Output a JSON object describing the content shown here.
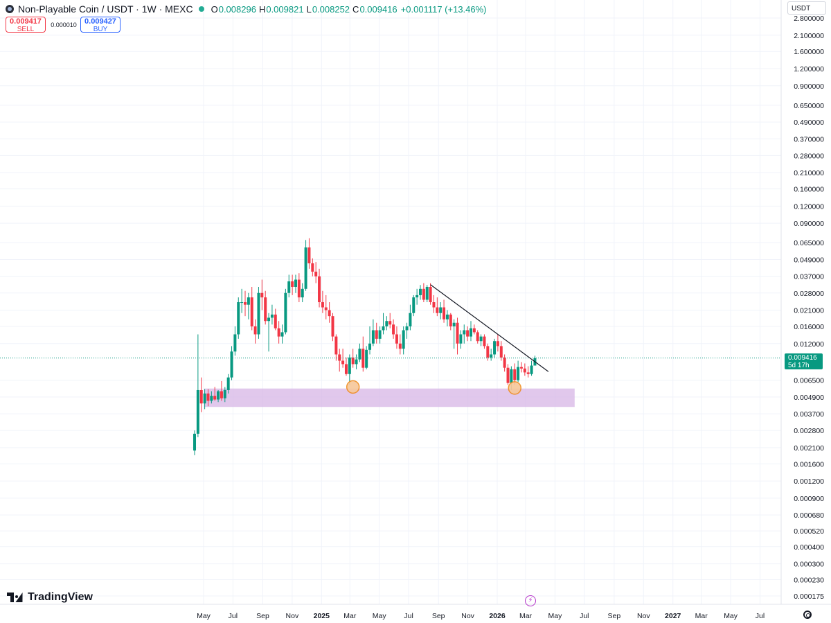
{
  "header": {
    "title": "Non-Playable Coin / USDT · 1W · MEXC",
    "ohlc": [
      {
        "k": "O",
        "v": "0.008296"
      },
      {
        "k": "H",
        "v": "0.009821"
      },
      {
        "k": "L",
        "v": "0.008252"
      },
      {
        "k": "C",
        "v": "0.009416"
      }
    ],
    "change": "+0.001117 (+13.46%)"
  },
  "trade": {
    "sell_price": "0.009417",
    "sell_label": "SELL",
    "spread": "0.000010",
    "buy_price": "0.009427",
    "buy_label": "BUY"
  },
  "currency_selector": "USDT",
  "price_tag": {
    "value": "0.009416",
    "countdown": "5d 17h"
  },
  "brand": "TradingView",
  "colors": {
    "up": "#089981",
    "down": "#f23645",
    "zone": "#d7b6e6",
    "grid": "#f0f3fa",
    "marker_fill": "#f7c79a",
    "marker_stroke": "#f08c1d",
    "trendline": "#131722"
  },
  "chart_data": {
    "type": "candlestick",
    "scale": "log",
    "y_ticks": [
      "2.800000",
      "2.100000",
      "1.600000",
      "1.200000",
      "0.900000",
      "0.650000",
      "0.490000",
      "0.370000",
      "0.280000",
      "0.210000",
      "0.160000",
      "0.120000",
      "0.090000",
      "0.065000",
      "0.049000",
      "0.037000",
      "0.028000",
      "0.021000",
      "0.016000",
      "0.012000",
      "0.006500",
      "0.004900",
      "0.003700",
      "0.002800",
      "0.002100",
      "0.001600",
      "0.001200",
      "0.000900",
      "0.000680",
      "0.000520",
      "0.000400",
      "0.000300",
      "0.000230",
      "0.000175"
    ],
    "x_ticks": [
      {
        "label": "May",
        "date": "2024-05-01"
      },
      {
        "label": "Jul",
        "date": "2024-07-01"
      },
      {
        "label": "Sep",
        "date": "2024-09-01"
      },
      {
        "label": "Nov",
        "date": "2024-11-01"
      },
      {
        "label": "2025",
        "date": "2025-01-01",
        "bold": true
      },
      {
        "label": "Mar",
        "date": "2025-03-01"
      },
      {
        "label": "May",
        "date": "2025-05-01"
      },
      {
        "label": "Jul",
        "date": "2025-07-01"
      },
      {
        "label": "Sep",
        "date": "2025-09-01"
      },
      {
        "label": "Nov",
        "date": "2025-11-01"
      },
      {
        "label": "2026",
        "date": "2026-01-01",
        "bold": true
      },
      {
        "label": "Mar",
        "date": "2026-03-01"
      },
      {
        "label": "May",
        "date": "2026-05-01"
      },
      {
        "label": "Jul",
        "date": "2026-07-01"
      },
      {
        "label": "Sep",
        "date": "2026-09-01"
      },
      {
        "label": "Nov",
        "date": "2026-11-01"
      },
      {
        "label": "2027",
        "date": "2027-01-01",
        "bold": true
      },
      {
        "label": "Mar",
        "date": "2027-03-01"
      },
      {
        "label": "May",
        "date": "2027-05-01"
      },
      {
        "label": "Jul",
        "date": "2027-07-01"
      }
    ],
    "last_price": 0.009416,
    "support_zone": {
      "low": 0.00415,
      "high": 0.00565,
      "start": "2024-04-15",
      "end": "2026-06-08"
    },
    "trendline": {
      "start": {
        "date": "2025-08-11",
        "price": 0.0322
      },
      "end": {
        "date": "2026-04-13",
        "price": 0.0075
      }
    },
    "markers": [
      {
        "date": "2025-03-03",
        "price": 0.0058
      },
      {
        "date": "2026-02-02",
        "price": 0.0057
      }
    ],
    "candles": [
      {
        "d": "2024-04-08",
        "o": 0.002,
        "h": 0.0028,
        "l": 0.00185,
        "c": 0.00265
      },
      {
        "d": "2024-04-15",
        "o": 0.00265,
        "h": 0.014,
        "l": 0.0025,
        "c": 0.0055
      },
      {
        "d": "2024-04-22",
        "o": 0.0055,
        "h": 0.0068,
        "l": 0.0038,
        "c": 0.0044
      },
      {
        "d": "2024-04-29",
        "o": 0.0044,
        "h": 0.0056,
        "l": 0.004,
        "c": 0.0052
      },
      {
        "d": "2024-05-06",
        "o": 0.0052,
        "h": 0.0056,
        "l": 0.0042,
        "c": 0.0046
      },
      {
        "d": "2024-05-13",
        "o": 0.0046,
        "h": 0.0054,
        "l": 0.0044,
        "c": 0.005
      },
      {
        "d": "2024-05-20",
        "o": 0.005,
        "h": 0.0058,
        "l": 0.0046,
        "c": 0.0047
      },
      {
        "d": "2024-05-27",
        "o": 0.0047,
        "h": 0.0055,
        "l": 0.0045,
        "c": 0.0054
      },
      {
        "d": "2024-06-03",
        "o": 0.0054,
        "h": 0.0064,
        "l": 0.0046,
        "c": 0.0048
      },
      {
        "d": "2024-06-10",
        "o": 0.0048,
        "h": 0.0058,
        "l": 0.0045,
        "c": 0.0055
      },
      {
        "d": "2024-06-17",
        "o": 0.0055,
        "h": 0.0072,
        "l": 0.0052,
        "c": 0.0068
      },
      {
        "d": "2024-06-24",
        "o": 0.0068,
        "h": 0.0115,
        "l": 0.0065,
        "c": 0.0105
      },
      {
        "d": "2024-07-01",
        "o": 0.0105,
        "h": 0.016,
        "l": 0.0098,
        "c": 0.014
      },
      {
        "d": "2024-07-08",
        "o": 0.014,
        "h": 0.026,
        "l": 0.013,
        "c": 0.024
      },
      {
        "d": "2024-07-15",
        "o": 0.024,
        "h": 0.03,
        "l": 0.02,
        "c": 0.024
      },
      {
        "d": "2024-07-22",
        "o": 0.024,
        "h": 0.029,
        "l": 0.019,
        "c": 0.023
      },
      {
        "d": "2024-07-29",
        "o": 0.023,
        "h": 0.028,
        "l": 0.018,
        "c": 0.026
      },
      {
        "d": "2024-08-05",
        "o": 0.026,
        "h": 0.031,
        "l": 0.015,
        "c": 0.016
      },
      {
        "d": "2024-08-12",
        "o": 0.016,
        "h": 0.018,
        "l": 0.012,
        "c": 0.014
      },
      {
        "d": "2024-08-19",
        "o": 0.014,
        "h": 0.031,
        "l": 0.013,
        "c": 0.028
      },
      {
        "d": "2024-08-26",
        "o": 0.028,
        "h": 0.035,
        "l": 0.021,
        "c": 0.026
      },
      {
        "d": "2024-09-02",
        "o": 0.026,
        "h": 0.029,
        "l": 0.0165,
        "c": 0.0175
      },
      {
        "d": "2024-09-09",
        "o": 0.0175,
        "h": 0.02,
        "l": 0.0105,
        "c": 0.0185
      },
      {
        "d": "2024-09-16",
        "o": 0.0185,
        "h": 0.023,
        "l": 0.0165,
        "c": 0.0195
      },
      {
        "d": "2024-09-23",
        "o": 0.0195,
        "h": 0.0215,
        "l": 0.015,
        "c": 0.0155
      },
      {
        "d": "2024-09-30",
        "o": 0.0155,
        "h": 0.0175,
        "l": 0.012,
        "c": 0.0135
      },
      {
        "d": "2024-10-07",
        "o": 0.0135,
        "h": 0.0165,
        "l": 0.012,
        "c": 0.0145
      },
      {
        "d": "2024-10-14",
        "o": 0.0145,
        "h": 0.03,
        "l": 0.014,
        "c": 0.028
      },
      {
        "d": "2024-10-21",
        "o": 0.028,
        "h": 0.038,
        "l": 0.026,
        "c": 0.034
      },
      {
        "d": "2024-10-28",
        "o": 0.034,
        "h": 0.038,
        "l": 0.027,
        "c": 0.031
      },
      {
        "d": "2024-11-04",
        "o": 0.031,
        "h": 0.038,
        "l": 0.028,
        "c": 0.035
      },
      {
        "d": "2024-11-11",
        "o": 0.035,
        "h": 0.039,
        "l": 0.024,
        "c": 0.026
      },
      {
        "d": "2024-11-18",
        "o": 0.026,
        "h": 0.033,
        "l": 0.024,
        "c": 0.03
      },
      {
        "d": "2024-11-25",
        "o": 0.03,
        "h": 0.068,
        "l": 0.029,
        "c": 0.06
      },
      {
        "d": "2024-12-02",
        "o": 0.06,
        "h": 0.07,
        "l": 0.042,
        "c": 0.046
      },
      {
        "d": "2024-12-09",
        "o": 0.046,
        "h": 0.05,
        "l": 0.037,
        "c": 0.04
      },
      {
        "d": "2024-12-16",
        "o": 0.04,
        "h": 0.047,
        "l": 0.033,
        "c": 0.037
      },
      {
        "d": "2024-12-23",
        "o": 0.037,
        "h": 0.042,
        "l": 0.022,
        "c": 0.024
      },
      {
        "d": "2024-12-30",
        "o": 0.024,
        "h": 0.029,
        "l": 0.02,
        "c": 0.022
      },
      {
        "d": "2025-01-06",
        "o": 0.022,
        "h": 0.027,
        "l": 0.018,
        "c": 0.021
      },
      {
        "d": "2025-01-13",
        "o": 0.021,
        "h": 0.024,
        "l": 0.017,
        "c": 0.019
      },
      {
        "d": "2025-01-20",
        "o": 0.019,
        "h": 0.02,
        "l": 0.0125,
        "c": 0.0135
      },
      {
        "d": "2025-01-27",
        "o": 0.0135,
        "h": 0.014,
        "l": 0.009,
        "c": 0.01
      },
      {
        "d": "2025-02-03",
        "o": 0.01,
        "h": 0.011,
        "l": 0.0075,
        "c": 0.009
      },
      {
        "d": "2025-02-10",
        "o": 0.009,
        "h": 0.011,
        "l": 0.008,
        "c": 0.0085
      },
      {
        "d": "2025-02-17",
        "o": 0.0085,
        "h": 0.0095,
        "l": 0.007,
        "c": 0.0072
      },
      {
        "d": "2025-02-24",
        "o": 0.0072,
        "h": 0.01,
        "l": 0.006,
        "c": 0.0095
      },
      {
        "d": "2025-03-03",
        "o": 0.0095,
        "h": 0.011,
        "l": 0.008,
        "c": 0.0085
      },
      {
        "d": "2025-03-10",
        "o": 0.0085,
        "h": 0.01,
        "l": 0.0078,
        "c": 0.0092
      },
      {
        "d": "2025-03-17",
        "o": 0.0092,
        "h": 0.012,
        "l": 0.0088,
        "c": 0.011
      },
      {
        "d": "2025-03-24",
        "o": 0.011,
        "h": 0.0135,
        "l": 0.0075,
        "c": 0.008
      },
      {
        "d": "2025-03-31",
        "o": 0.008,
        "h": 0.0115,
        "l": 0.0078,
        "c": 0.0108
      },
      {
        "d": "2025-04-07",
        "o": 0.0108,
        "h": 0.016,
        "l": 0.01,
        "c": 0.012
      },
      {
        "d": "2025-04-14",
        "o": 0.012,
        "h": 0.018,
        "l": 0.0115,
        "c": 0.015
      },
      {
        "d": "2025-04-21",
        "o": 0.015,
        "h": 0.017,
        "l": 0.012,
        "c": 0.013
      },
      {
        "d": "2025-04-28",
        "o": 0.013,
        "h": 0.016,
        "l": 0.012,
        "c": 0.015
      },
      {
        "d": "2025-05-05",
        "o": 0.015,
        "h": 0.02,
        "l": 0.014,
        "c": 0.016
      },
      {
        "d": "2025-05-12",
        "o": 0.016,
        "h": 0.019,
        "l": 0.015,
        "c": 0.0175
      },
      {
        "d": "2025-05-19",
        "o": 0.0175,
        "h": 0.02,
        "l": 0.0155,
        "c": 0.0165
      },
      {
        "d": "2025-05-26",
        "o": 0.0165,
        "h": 0.018,
        "l": 0.013,
        "c": 0.014
      },
      {
        "d": "2025-06-02",
        "o": 0.014,
        "h": 0.016,
        "l": 0.011,
        "c": 0.012
      },
      {
        "d": "2025-06-09",
        "o": 0.012,
        "h": 0.014,
        "l": 0.01,
        "c": 0.011
      },
      {
        "d": "2025-06-16",
        "o": 0.011,
        "h": 0.016,
        "l": 0.01,
        "c": 0.015
      },
      {
        "d": "2025-06-23",
        "o": 0.015,
        "h": 0.017,
        "l": 0.013,
        "c": 0.016
      },
      {
        "d": "2025-06-30",
        "o": 0.016,
        "h": 0.023,
        "l": 0.015,
        "c": 0.02
      },
      {
        "d": "2025-07-07",
        "o": 0.02,
        "h": 0.027,
        "l": 0.019,
        "c": 0.026
      },
      {
        "d": "2025-07-14",
        "o": 0.026,
        "h": 0.03,
        "l": 0.023,
        "c": 0.027
      },
      {
        "d": "2025-07-21",
        "o": 0.027,
        "h": 0.032,
        "l": 0.025,
        "c": 0.03
      },
      {
        "d": "2025-07-28",
        "o": 0.03,
        "h": 0.033,
        "l": 0.024,
        "c": 0.025
      },
      {
        "d": "2025-08-04",
        "o": 0.025,
        "h": 0.032,
        "l": 0.024,
        "c": 0.031
      },
      {
        "d": "2025-08-11",
        "o": 0.031,
        "h": 0.033,
        "l": 0.023,
        "c": 0.024
      },
      {
        "d": "2025-08-18",
        "o": 0.024,
        "h": 0.027,
        "l": 0.02,
        "c": 0.022
      },
      {
        "d": "2025-08-25",
        "o": 0.022,
        "h": 0.026,
        "l": 0.019,
        "c": 0.02
      },
      {
        "d": "2025-09-01",
        "o": 0.02,
        "h": 0.024,
        "l": 0.018,
        "c": 0.022
      },
      {
        "d": "2025-09-08",
        "o": 0.022,
        "h": 0.025,
        "l": 0.017,
        "c": 0.018
      },
      {
        "d": "2025-09-15",
        "o": 0.018,
        "h": 0.021,
        "l": 0.016,
        "c": 0.0195
      },
      {
        "d": "2025-09-22",
        "o": 0.0195,
        "h": 0.02,
        "l": 0.015,
        "c": 0.016
      },
      {
        "d": "2025-09-29",
        "o": 0.016,
        "h": 0.018,
        "l": 0.011,
        "c": 0.017
      },
      {
        "d": "2025-10-06",
        "o": 0.017,
        "h": 0.0185,
        "l": 0.01,
        "c": 0.012
      },
      {
        "d": "2025-10-13",
        "o": 0.012,
        "h": 0.015,
        "l": 0.011,
        "c": 0.014
      },
      {
        "d": "2025-10-20",
        "o": 0.014,
        "h": 0.0165,
        "l": 0.012,
        "c": 0.015
      },
      {
        "d": "2025-10-27",
        "o": 0.015,
        "h": 0.016,
        "l": 0.0125,
        "c": 0.0135
      },
      {
        "d": "2025-11-03",
        "o": 0.0135,
        "h": 0.0175,
        "l": 0.0125,
        "c": 0.0155
      },
      {
        "d": "2025-11-10",
        "o": 0.0155,
        "h": 0.0165,
        "l": 0.014,
        "c": 0.0145
      },
      {
        "d": "2025-11-17",
        "o": 0.0145,
        "h": 0.015,
        "l": 0.012,
        "c": 0.0125
      },
      {
        "d": "2025-11-24",
        "o": 0.0125,
        "h": 0.014,
        "l": 0.0115,
        "c": 0.0135
      },
      {
        "d": "2025-12-01",
        "o": 0.0135,
        "h": 0.014,
        "l": 0.011,
        "c": 0.0115
      },
      {
        "d": "2025-12-08",
        "o": 0.0115,
        "h": 0.012,
        "l": 0.009,
        "c": 0.0095
      },
      {
        "d": "2025-12-15",
        "o": 0.0095,
        "h": 0.011,
        "l": 0.009,
        "c": 0.01
      },
      {
        "d": "2025-12-22",
        "o": 0.01,
        "h": 0.013,
        "l": 0.0095,
        "c": 0.0125
      },
      {
        "d": "2025-12-29",
        "o": 0.0125,
        "h": 0.014,
        "l": 0.0105,
        "c": 0.0115
      },
      {
        "d": "2026-01-05",
        "o": 0.0115,
        "h": 0.0125,
        "l": 0.009,
        "c": 0.0095
      },
      {
        "d": "2026-01-12",
        "o": 0.0095,
        "h": 0.01,
        "l": 0.0075,
        "c": 0.008
      },
      {
        "d": "2026-01-19",
        "o": 0.008,
        "h": 0.0085,
        "l": 0.006,
        "c": 0.0062
      },
      {
        "d": "2026-01-26",
        "o": 0.0062,
        "h": 0.0082,
        "l": 0.0055,
        "c": 0.0078
      },
      {
        "d": "2026-02-02",
        "o": 0.0078,
        "h": 0.0086,
        "l": 0.006,
        "c": 0.0065
      },
      {
        "d": "2026-02-09",
        "o": 0.0065,
        "h": 0.009,
        "l": 0.0063,
        "c": 0.0081
      },
      {
        "d": "2026-02-16",
        "o": 0.0081,
        "h": 0.0088,
        "l": 0.0074,
        "c": 0.0079
      },
      {
        "d": "2026-02-23",
        "o": 0.0079,
        "h": 0.0086,
        "l": 0.007,
        "c": 0.0074
      },
      {
        "d": "2026-03-02",
        "o": 0.0074,
        "h": 0.0082,
        "l": 0.0068,
        "c": 0.0072
      },
      {
        "d": "2026-03-09",
        "o": 0.0072,
        "h": 0.009,
        "l": 0.007,
        "c": 0.0083
      },
      {
        "d": "2026-03-16",
        "o": 0.0083,
        "h": 0.0098,
        "l": 0.0083,
        "c": 0.0094
      }
    ]
  }
}
